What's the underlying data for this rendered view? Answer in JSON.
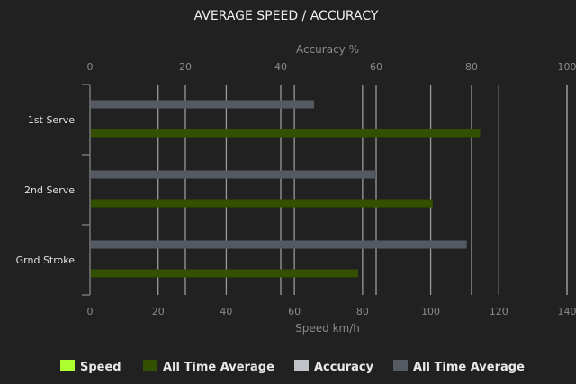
{
  "chart_data": {
    "type": "bar",
    "orientation": "horizontal",
    "title": "AVERAGE SPEED / ACCURACY",
    "categories": [
      "1st Serve",
      "2nd Serve",
      "Grnd Stroke"
    ],
    "top_axis": {
      "label": "Accuracy %",
      "range": [
        0,
        100
      ],
      "ticks": [
        0,
        20,
        40,
        60,
        80,
        100
      ]
    },
    "bottom_axis": {
      "label": "Speed km/h",
      "range": [
        0,
        140
      ],
      "ticks": [
        0,
        20,
        40,
        60,
        80,
        100,
        120,
        140
      ]
    },
    "grid": true,
    "legend_position": "bottom",
    "legend": [
      {
        "name": "Speed",
        "color": "#adff2f"
      },
      {
        "name": "All Time Average",
        "color": "#335000"
      },
      {
        "name": "Accuracy",
        "color": "#bfc3c7"
      },
      {
        "name": "All Time Average",
        "color": "#555a62"
      }
    ],
    "series": [
      {
        "legend_index": 3,
        "axis": "top",
        "color": "#555a62",
        "values": [
          47,
          60,
          79
        ]
      },
      {
        "legend_index": 1,
        "axis": "bottom",
        "color": "#335000",
        "values": [
          114.5,
          100.6,
          78.7
        ]
      }
    ]
  }
}
